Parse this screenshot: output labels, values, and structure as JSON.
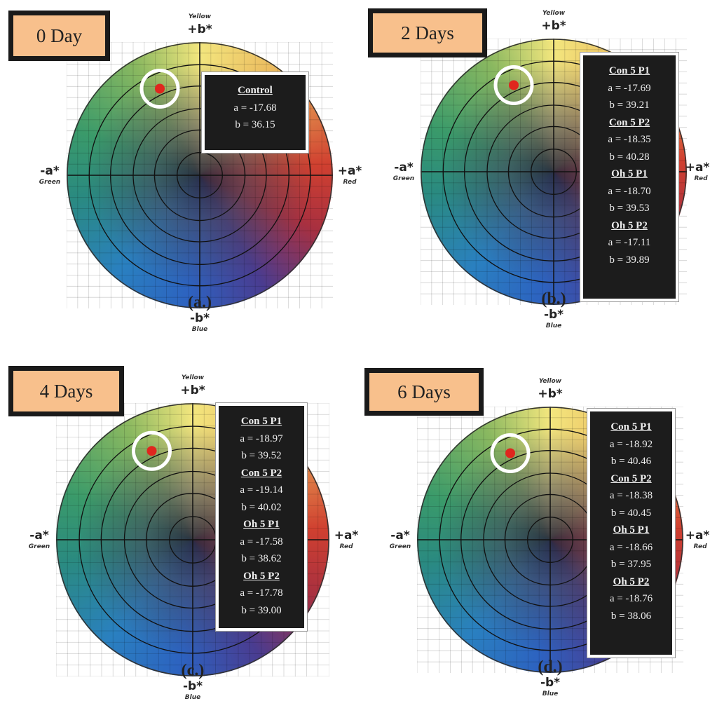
{
  "panels": [
    {
      "title": "0 Day",
      "label": "(a.)",
      "axes": {
        "top": "+b*",
        "top_name": "Yellow",
        "bottom": "-b*",
        "bottom_name": "Blue",
        "left": "-a*",
        "left_name": "Green",
        "right": "+a*",
        "right_name": "Red"
      },
      "readings": [
        {
          "name": "Control",
          "a": "a = -17.68",
          "b": "b = 36.15"
        }
      ]
    },
    {
      "title": "2 Days",
      "label": "(b.)",
      "axes": {
        "top": "+b*",
        "top_name": "Yellow",
        "bottom": "-b*",
        "bottom_name": "Blue",
        "left": "-a*",
        "left_name": "Green",
        "right": "+a*",
        "right_name": "Red"
      },
      "readings": [
        {
          "name": "Con 5 P1",
          "a": "a = -17.69",
          "b": "b = 39.21"
        },
        {
          "name": "Con 5 P2",
          "a": "a = -18.35",
          "b": "b = 40.28"
        },
        {
          "name": "Oh 5 P1",
          "a": "a = -18.70",
          "b": "b = 39.53"
        },
        {
          "name": "Oh 5 P2",
          "a": "a = -17.11",
          "b": "b = 39.89"
        }
      ]
    },
    {
      "title": "4 Days",
      "label": "(c.)",
      "axes": {
        "top": "+b*",
        "top_name": "Yellow",
        "bottom": "-b*",
        "bottom_name": "Blue",
        "left": "-a*",
        "left_name": "Green",
        "right": "+a*",
        "right_name": "Red"
      },
      "readings": [
        {
          "name": "Con 5 P1",
          "a": "a = -18.97",
          "b": "b = 39.52"
        },
        {
          "name": "Con 5 P2",
          "a": "a = -19.14",
          "b": "b = 40.02"
        },
        {
          "name": "Oh 5 P1",
          "a": "a = -17.58",
          "b": "b = 38.62"
        },
        {
          "name": "Oh 5 P2",
          "a": "a = -17.78",
          "b": "b = 39.00"
        }
      ]
    },
    {
      "title": "6 Days",
      "label": "(d.)",
      "axes": {
        "top": "+b*",
        "top_name": "Yellow",
        "bottom": "-b*",
        "bottom_name": "Blue",
        "left": "-a*",
        "left_name": "Green",
        "right": "+a*",
        "right_name": "Red"
      },
      "readings": [
        {
          "name": "Con 5 P1",
          "a": "a = -18.92",
          "b": "b = 40.46"
        },
        {
          "name": "Con 5 P2",
          "a": "a = -18.38",
          "b": "b = 40.45"
        },
        {
          "name": "Oh 5 P1",
          "a": "a = -18.66",
          "b": "b = 37.95"
        },
        {
          "name": "Oh 5 P2",
          "a": "a = -18.76",
          "b": "b = 38.06"
        }
      ]
    }
  ]
}
